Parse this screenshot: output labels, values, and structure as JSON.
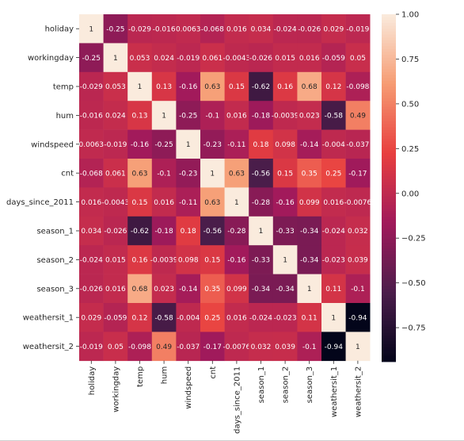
{
  "chart_data": {
    "type": "heatmap",
    "title": "",
    "xlabel": "",
    "ylabel": "",
    "variables": [
      "holiday",
      "workingday",
      "temp",
      "hum",
      "windspeed",
      "cnt",
      "days_since_2011",
      "season_1",
      "season_2",
      "season_3",
      "weathersit_1",
      "weathersit_2"
    ],
    "cell_labels": [
      [
        "1",
        "-0.25",
        "-0.029",
        "-0.016",
        "0.0063",
        "-0.068",
        "0.016",
        "0.034",
        "-0.024",
        "-0.026",
        "0.029",
        "-0.019"
      ],
      [
        "-0.25",
        "1",
        "0.053",
        "0.024",
        "-0.019",
        "0.061",
        "-0.0043",
        "-0.026",
        "0.015",
        "0.016",
        "-0.059",
        "0.05"
      ],
      [
        "-0.029",
        "0.053",
        "1",
        "0.13",
        "-0.16",
        "0.63",
        "0.15",
        "-0.62",
        "0.16",
        "0.68",
        "0.12",
        "-0.098"
      ],
      [
        "-0.016",
        "0.024",
        "0.13",
        "1",
        "-0.25",
        "-0.1",
        "0.016",
        "-0.18",
        "-0.0039",
        "0.023",
        "-0.58",
        "0.49"
      ],
      [
        "0.0063",
        "-0.019",
        "-0.16",
        "-0.25",
        "1",
        "-0.23",
        "-0.11",
        "0.18",
        "0.098",
        "-0.14",
        "-0.004",
        "-0.037"
      ],
      [
        "-0.068",
        "0.061",
        "0.63",
        "-0.1",
        "-0.23",
        "1",
        "0.63",
        "-0.56",
        "0.15",
        "0.35",
        "0.25",
        "-0.17"
      ],
      [
        "0.016",
        "-0.0043",
        "0.15",
        "0.016",
        "-0.11",
        "0.63",
        "1",
        "-0.28",
        "-0.16",
        "0.099",
        "0.016",
        "-0.0076"
      ],
      [
        "0.034",
        "-0.026",
        "-0.62",
        "-0.18",
        "0.18",
        "-0.56",
        "-0.28",
        "1",
        "-0.33",
        "-0.34",
        "-0.024",
        "0.032"
      ],
      [
        "-0.024",
        "0.015",
        "0.16",
        "-0.0039",
        "0.098",
        "0.15",
        "-0.16",
        "-0.33",
        "1",
        "-0.34",
        "-0.023",
        "0.039"
      ],
      [
        "-0.026",
        "0.016",
        "0.68",
        "0.023",
        "-0.14",
        "0.35",
        "0.099",
        "-0.34",
        "-0.34",
        "1",
        "0.11",
        "-0.1"
      ],
      [
        "0.029",
        "-0.059",
        "0.12",
        "-0.58",
        "-0.004",
        "0.25",
        "0.016",
        "-0.024",
        "-0.023",
        "0.11",
        "1",
        "-0.94"
      ],
      [
        "-0.019",
        "0.05",
        "-0.098",
        "0.49",
        "-0.037",
        "-0.17",
        "-0.0076",
        "0.032",
        "0.039",
        "-0.1",
        "-0.94",
        "1"
      ]
    ],
    "colorbar": {
      "vmin": -0.94,
      "vmax": 1.0,
      "tick_labels": [
        "1.00",
        "0.75",
        "0.50",
        "0.25",
        "0.00",
        "−0.25",
        "−0.50",
        "−0.75"
      ],
      "tick_values": [
        1.0,
        0.75,
        0.5,
        0.25,
        0.0,
        -0.25,
        -0.5,
        -0.75
      ]
    },
    "colormap": "rocket",
    "colormap_stops": [
      "#03051a",
      "#4c1d4b",
      "#a11a5b",
      "#e83f3f",
      "#f69c73",
      "#faebdd"
    ],
    "grid": false,
    "legend": "colorbar-right"
  }
}
